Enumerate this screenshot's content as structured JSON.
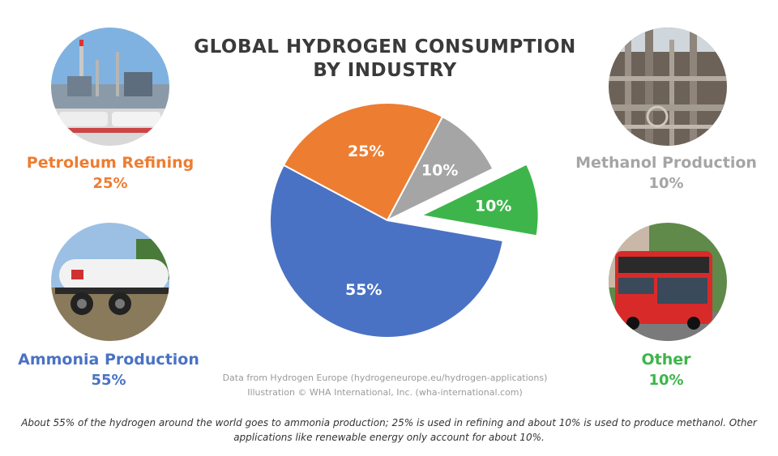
{
  "title_line1": "GLOBAL HYDROGEN CONSUMPTION",
  "title_line2": "BY INDUSTRY",
  "colors": {
    "ammonia": "#4a72c4",
    "refining": "#ed7d31",
    "methanol": "#a5a5a5",
    "other": "#3db54a"
  },
  "labels": {
    "refining": {
      "name": "Petroleum Refining",
      "pct": "25%",
      "photo": "refinery-photo"
    },
    "methanol": {
      "name": "Methanol Production",
      "pct": "10%",
      "photo": "methanol-plant-photo"
    },
    "ammonia": {
      "name": "Ammonia Production",
      "pct": "55%",
      "photo": "ammonia-tank-photo"
    },
    "other": {
      "name": "Other",
      "pct": "10%",
      "photo": "bus-photo"
    }
  },
  "source_line1": "Data from Hydrogen Europe (hydrogeneurope.eu/hydrogen-applications)",
  "source_line2": "Illustration © WHA International, Inc. (wha-international.com)",
  "caption": "About 55% of the hydrogen around the world goes to ammonia production; 25% is used in refining and about 10% is used to produce methanol. Other applications like renewable energy only account for about 10%.",
  "chart_data": {
    "type": "pie",
    "title": "GLOBAL HYDROGEN CONSUMPTION BY INDUSTRY",
    "categories": [
      "Ammonia Production",
      "Petroleum Refining",
      "Methanol Production",
      "Other"
    ],
    "values": [
      55,
      25,
      10,
      10
    ],
    "slice_labels": [
      "55%",
      "25%",
      "10%",
      "10%"
    ],
    "exploded": [
      "Other"
    ]
  }
}
